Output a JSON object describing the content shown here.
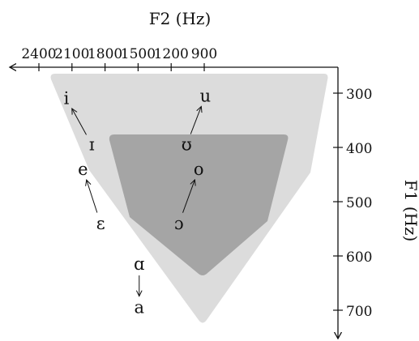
{
  "chart_data": {
    "type": "vowel-chart",
    "x_axis": {
      "label": "F2 (Hz)",
      "reversed": true,
      "range": [
        2400,
        900
      ],
      "ticks": [
        2400,
        2100,
        1800,
        1500,
        1200,
        900
      ]
    },
    "y_axis": {
      "label": "F1 (Hz)",
      "inverted": true,
      "range": [
        300,
        700
      ],
      "ticks": [
        300,
        400,
        500,
        600,
        700
      ]
    },
    "outer_region_color": "#dcdcdc",
    "inner_region_color": "#a5a5a5",
    "vowels_outer": [
      {
        "symbol": "i",
        "f2": 2150,
        "f1": 310
      },
      {
        "symbol": "e",
        "f2": 2000,
        "f1": 440
      },
      {
        "symbol": "a",
        "f2": 1490,
        "f1": 695
      },
      {
        "symbol": "o",
        "f2": 950,
        "f1": 440
      },
      {
        "symbol": "u",
        "f2": 890,
        "f1": 305
      }
    ],
    "vowels_inner": [
      {
        "symbol": "ɪ",
        "f2": 1920,
        "f1": 395
      },
      {
        "symbol": "ɛ",
        "f2": 1840,
        "f1": 540
      },
      {
        "symbol": "ɑ",
        "f2": 1490,
        "f1": 615
      },
      {
        "symbol": "ɔ",
        "f2": 1130,
        "f1": 540
      },
      {
        "symbol": "ʊ",
        "f2": 1060,
        "f1": 395
      }
    ],
    "shifts": [
      {
        "from": "ɪ",
        "to": "i"
      },
      {
        "from": "ɛ",
        "to": "e"
      },
      {
        "from": "ɑ",
        "to": "a"
      },
      {
        "from": "ɔ",
        "to": "o"
      },
      {
        "from": "ʊ",
        "to": "u"
      }
    ]
  }
}
